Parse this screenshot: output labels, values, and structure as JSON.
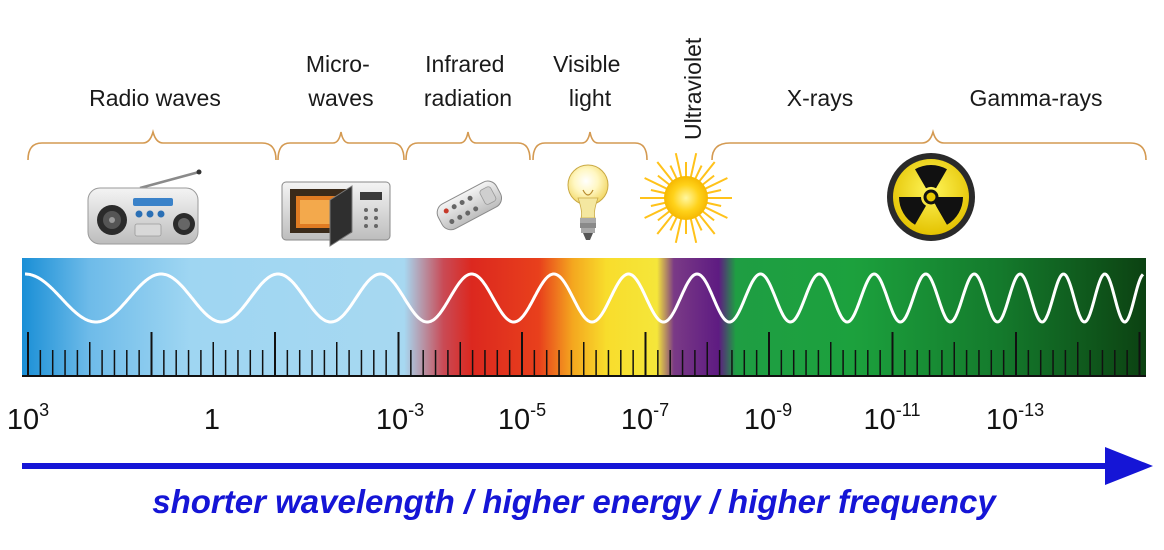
{
  "bands": [
    {
      "id": "radio",
      "lines": [
        "Radio waves"
      ],
      "icon": "radio-icon"
    },
    {
      "id": "microwave",
      "lines": [
        "Micro-",
        "waves"
      ],
      "icon": "microwave-oven-icon"
    },
    {
      "id": "infrared",
      "lines": [
        "Infrared",
        "radiation"
      ],
      "icon": "remote-control-icon"
    },
    {
      "id": "visible",
      "lines": [
        "Visible",
        "light"
      ],
      "icon": "light-bulb-icon"
    },
    {
      "id": "ultraviolet",
      "lines": [
        "Ultraviolet"
      ],
      "icon": "sun-icon"
    },
    {
      "id": "xray",
      "lines": [
        "X-rays"
      ],
      "icon": "radiation-symbol-icon"
    },
    {
      "id": "gamma",
      "lines": [
        "Gamma-rays"
      ],
      "icon": ""
    }
  ],
  "scale_labels": [
    {
      "base": "10",
      "exp": "3"
    },
    {
      "base": "1",
      "exp": ""
    },
    {
      "base": "10",
      "exp": "-3"
    },
    {
      "base": "10",
      "exp": "-5"
    },
    {
      "base": "10",
      "exp": "-7"
    },
    {
      "base": "10",
      "exp": "-9"
    },
    {
      "base": "10",
      "exp": "-11"
    },
    {
      "base": "10",
      "exp": "-13"
    }
  ],
  "caption": "shorter wavelength / higher energy / higher frequency",
  "colors": {
    "radio": "#9fd6f2",
    "infrared": "#d9241e",
    "visible": "#f7e233",
    "ultraviolet": "#6a1f8a",
    "xray": "#16a03e",
    "gamma": "#0e4a14",
    "bracket": "#d49a52",
    "arrow": "#1515d6"
  }
}
